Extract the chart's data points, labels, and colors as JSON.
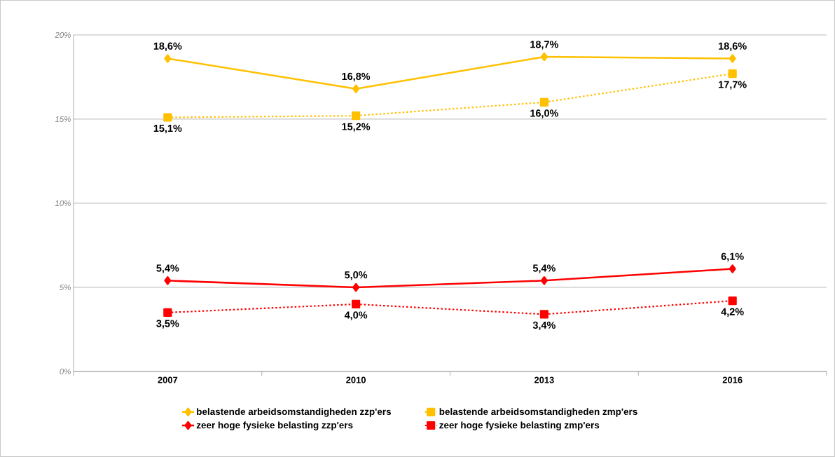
{
  "chart_data": {
    "type": "line",
    "categories": [
      "2007",
      "2010",
      "2013",
      "2016"
    ],
    "series": [
      {
        "name": "belastende arbeidsomstandigheden zzp'ers",
        "color": "#ffc000",
        "marker": "diamond",
        "line_style": "solid",
        "values": [
          18.6,
          16.8,
          18.7,
          18.6
        ],
        "value_labels": [
          "18,6%",
          "16,8%",
          "18,7%",
          "18,6%"
        ]
      },
      {
        "name": "belastende arbeidsomstandigheden zmp'ers",
        "color": "#ffc000",
        "marker": "square",
        "line_style": "dotted",
        "values": [
          15.1,
          15.2,
          16.0,
          17.7
        ],
        "value_labels": [
          "15,1%",
          "15,2%",
          "16,0%",
          "17,7%"
        ]
      },
      {
        "name": "zeer hoge fysieke belasting zzp'ers",
        "color": "#ff0000",
        "marker": "diamond",
        "line_style": "solid",
        "values": [
          5.4,
          5.0,
          5.4,
          6.1
        ],
        "value_labels": [
          "5,4%",
          "5,0%",
          "5,4%",
          "6,1%"
        ]
      },
      {
        "name": "zeer hoge fysieke belasting zmp'ers",
        "color": "#ff0000",
        "marker": "square",
        "line_style": "dotted",
        "values": [
          3.5,
          4.0,
          3.4,
          4.2
        ],
        "value_labels": [
          "3,5%",
          "4,0%",
          "3,4%",
          "4,2%"
        ]
      }
    ],
    "ylim": [
      0,
      20
    ],
    "yticks": [
      {
        "value": 0,
        "label": "0%"
      },
      {
        "value": 5,
        "label": "5%"
      },
      {
        "value": 10,
        "label": "10%"
      },
      {
        "value": 15,
        "label": "15%"
      },
      {
        "value": 20,
        "label": "20%"
      }
    ],
    "grid": "y",
    "legend": "bottom"
  }
}
